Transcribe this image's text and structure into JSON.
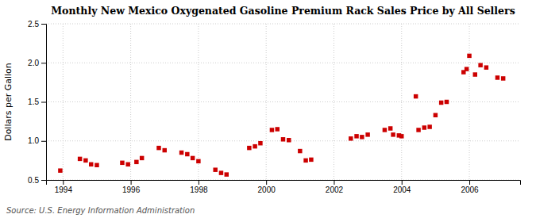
{
  "chart_data": {
    "type": "scatter",
    "title": "Monthly New Mexico Oxygenated Gasoline Premium Rack Sales Price by All Sellers",
    "ylabel": "Dollars per Gallon",
    "source": "Source: U.S. Energy Information Administration",
    "color": "#cc0000",
    "marker": "square",
    "grid": true,
    "xlim": [
      1993.5,
      2007.5
    ],
    "xticks": [
      1994,
      1996,
      1998,
      2000,
      2002,
      2004,
      2006
    ],
    "ylim": [
      0.5,
      2.5
    ],
    "yticks": [
      0.5,
      {
        "value": 1.0,
        "label": "1.0"
      },
      1.5,
      {
        "value": 2.0,
        "label": "2.0"
      },
      2.5
    ],
    "x": [
      1993.92,
      1994.5,
      1994.67,
      1994.83,
      1995.0,
      1995.75,
      1995.92,
      1996.17,
      1996.33,
      1996.83,
      1997.0,
      1997.5,
      1997.67,
      1997.83,
      1998.0,
      1998.5,
      1998.67,
      1998.83,
      1999.5,
      1999.67,
      1999.83,
      2000.17,
      2000.33,
      2000.5,
      2000.67,
      2001.0,
      2001.17,
      2001.33,
      2002.5,
      2002.67,
      2002.83,
      2003.0,
      2003.5,
      2003.67,
      2003.75,
      2003.92,
      2004.0,
      2004.42,
      2004.5,
      2004.67,
      2004.83,
      2005.0,
      2005.17,
      2005.33,
      2005.83,
      2005.92,
      2006.0,
      2006.17,
      2006.33,
      2006.5,
      2006.83,
      2007.0
    ],
    "values": [
      0.62,
      0.77,
      0.75,
      0.7,
      0.69,
      0.72,
      0.7,
      0.73,
      0.78,
      0.91,
      0.88,
      0.85,
      0.83,
      0.78,
      0.74,
      0.63,
      0.59,
      0.57,
      0.91,
      0.93,
      0.97,
      1.14,
      1.15,
      1.02,
      1.01,
      0.87,
      0.75,
      0.76,
      1.03,
      1.06,
      1.05,
      1.08,
      1.14,
      1.16,
      1.08,
      1.07,
      1.06,
      1.57,
      1.14,
      1.17,
      1.18,
      1.33,
      1.49,
      1.5,
      1.88,
      1.92,
      2.09,
      1.85,
      1.97,
      1.94,
      1.81,
      1.8
    ]
  }
}
